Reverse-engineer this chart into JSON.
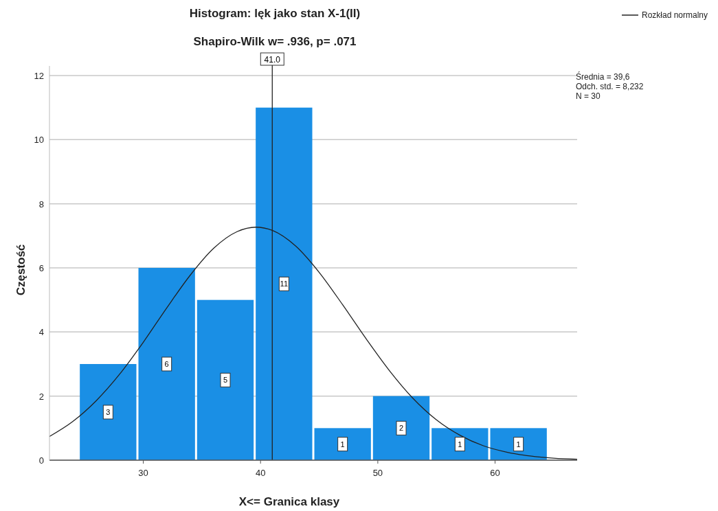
{
  "chart_data": {
    "type": "histogram",
    "title": "Histogram: lęk jako stan X-1(II)",
    "subtitle": "Shapiro-Wilk w= .936, p= .071",
    "xlabel": "X<= Granica klasy",
    "ylabel": "Częstość",
    "bins": [
      24.5,
      29.5,
      34.5,
      39.5,
      44.5,
      49.5,
      54.5,
      59.5,
      64.5
    ],
    "values": [
      3,
      6,
      5,
      11,
      1,
      2,
      1,
      1
    ],
    "color": "#1a8fe5",
    "value_labels": [
      "3",
      "6",
      "5",
      "11",
      "1",
      "2",
      "1",
      "1"
    ],
    "series": [
      {
        "type": "line",
        "name": "Rozkład normalny",
        "color": "#222222",
        "x": [
          22,
          24,
          26,
          28,
          30,
          32,
          34,
          36,
          38,
          39.6,
          41,
          43,
          45,
          47,
          49,
          51,
          53,
          55,
          57,
          59,
          61,
          63,
          65,
          67
        ],
        "values": [
          0.74,
          1.21,
          1.86,
          2.69,
          3.68,
          4.75,
          5.77,
          6.61,
          7.13,
          7.27,
          7.17,
          6.68,
          5.86,
          4.85,
          3.79,
          2.79,
          1.93,
          1.26,
          0.78,
          0.45,
          0.25,
          0.13,
          0.06,
          0.03
        ]
      }
    ],
    "ref_lines": [
      {
        "axis": "x",
        "value": 41,
        "label": "41.0",
        "color": "#222222"
      }
    ],
    "annotations": [
      "Średnia = 39,6",
      "Odch. std. = 8,232",
      "N = 30"
    ],
    "xlim": [
      22,
      67
    ],
    "xticks": [
      30,
      40,
      50,
      60
    ],
    "ylim": [
      0,
      12.3
    ],
    "yticks": [
      0,
      2,
      4,
      6,
      8,
      10,
      12
    ],
    "grid": "y",
    "legend": "top right"
  }
}
